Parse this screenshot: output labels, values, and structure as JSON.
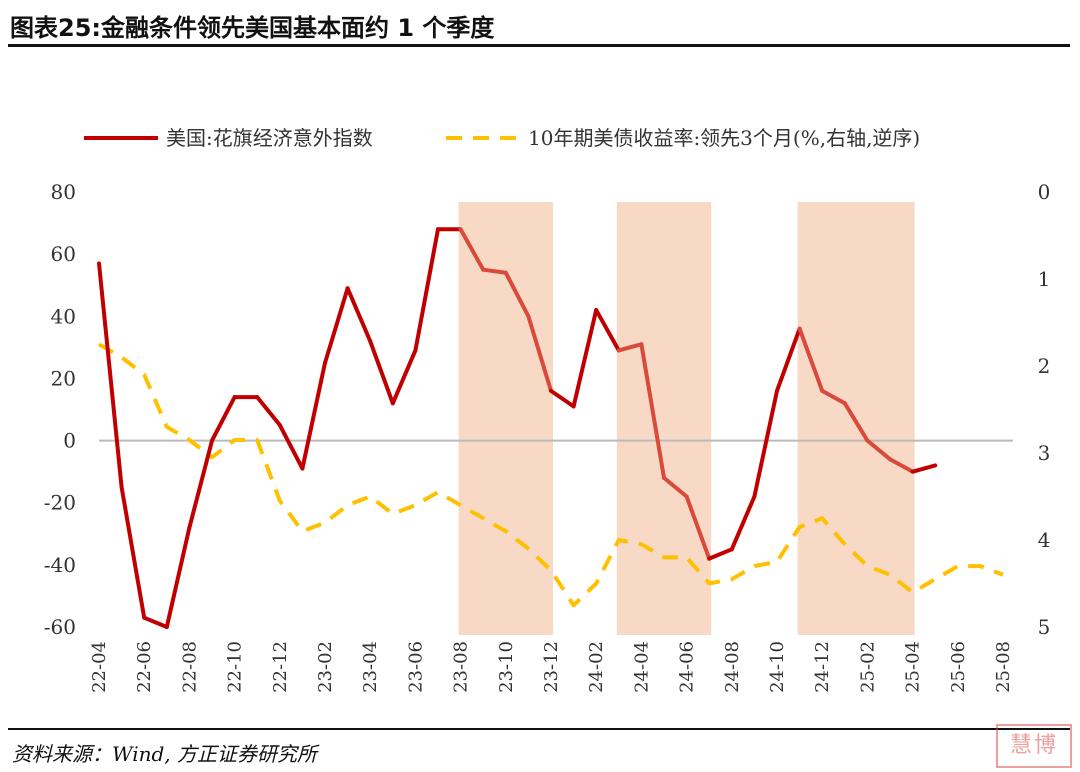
{
  "title": "图表25:金融条件领先美国基本面约 1 个季度",
  "source": "资料来源：Wind, 方正证券研究所",
  "watermark": "慧博",
  "colors": {
    "series1": "#c00000",
    "series1_shaded": "#d94a3a",
    "series2": "#ffc000",
    "shade": "#f8d9c5",
    "axis": "#bbbbbb"
  },
  "chart_data": {
    "type": "line",
    "categories": [
      "22-04",
      "22-05",
      "22-06",
      "22-07",
      "22-08",
      "22-09",
      "22-10",
      "22-11",
      "22-12",
      "23-01",
      "23-02",
      "23-03",
      "23-04",
      "23-05",
      "23-06",
      "23-07",
      "23-08",
      "23-09",
      "23-10",
      "23-11",
      "23-12",
      "24-01",
      "24-02",
      "24-03",
      "24-04",
      "24-05",
      "24-06",
      "24-07",
      "24-08",
      "24-09",
      "24-10",
      "24-11",
      "24-12",
      "25-01",
      "25-02",
      "25-03",
      "25-04",
      "25-05",
      "25-06",
      "25-07",
      "25-08"
    ],
    "tick_labels": [
      "22-04",
      "22-06",
      "22-08",
      "22-10",
      "22-12",
      "23-02",
      "23-04",
      "23-06",
      "23-08",
      "23-10",
      "23-12",
      "24-02",
      "24-04",
      "24-06",
      "24-08",
      "24-10",
      "24-12",
      "25-02",
      "25-04",
      "25-06",
      "25-08"
    ],
    "ylim": [
      -60,
      80
    ],
    "yticks": [
      "80",
      "60",
      "40",
      "20",
      "0",
      "-20",
      "-40",
      "-60"
    ],
    "y2lim": [
      0,
      5
    ],
    "y2_reversed": true,
    "y2ticks": [
      "0",
      "1",
      "2",
      "3",
      "4",
      "5"
    ],
    "shaded_ranges": [
      [
        "23-08",
        "23-12"
      ],
      [
        "24-03",
        "24-07"
      ],
      [
        "24-11",
        "25-04"
      ]
    ],
    "series": [
      {
        "name": "美国:花旗经济意外指数",
        "axis": "left",
        "style": "solid",
        "values": [
          57,
          -15,
          -57,
          -60,
          -28,
          0,
          14,
          14,
          5,
          -9,
          25,
          49,
          32,
          12,
          29,
          68,
          68,
          55,
          54,
          40,
          16,
          11,
          42,
          29,
          31,
          -12,
          -18,
          -38,
          -35,
          -18,
          16,
          36,
          16,
          12,
          0,
          -6,
          -10,
          -8,
          null,
          null,
          null
        ]
      },
      {
        "name": "10年期美债收益率:领先3个月(%,右轴,逆序)",
        "axis": "right",
        "style": "dashed",
        "values": [
          1.75,
          1.9,
          2.1,
          2.7,
          2.85,
          3.05,
          2.85,
          2.85,
          3.55,
          3.9,
          3.8,
          3.6,
          3.5,
          3.7,
          3.6,
          3.45,
          3.6,
          3.75,
          3.9,
          4.1,
          4.35,
          4.75,
          4.5,
          4.0,
          4.05,
          4.2,
          4.2,
          4.5,
          4.45,
          4.3,
          4.25,
          3.85,
          3.75,
          4.05,
          4.3,
          4.4,
          4.6,
          4.45,
          4.3,
          4.3,
          4.4
        ]
      }
    ]
  }
}
